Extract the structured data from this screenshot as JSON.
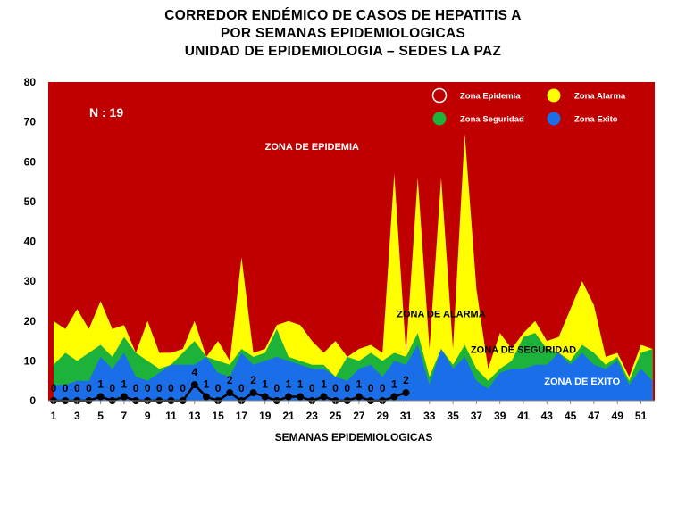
{
  "title_lines": [
    "CORREDOR ENDÉMICO DE CASOS DE HEPATITIS A",
    "POR SEMANAS EPIDEMIOLOGICAS",
    "UNIDAD DE EPIDEMIOLOGIA – SEDES LA PAZ"
  ],
  "n_label": "N : 19",
  "colors": {
    "epidemia": "#c00000",
    "alarma": "#ffff00",
    "seguridad": "#1db33a",
    "exito": "#1a6fe8",
    "cases": "#000000"
  },
  "chart_data": {
    "type": "area",
    "xlabel": "SEMANAS EPIDEMIOLOGICAS",
    "ylabel": "",
    "xlim": [
      1,
      52
    ],
    "ylim": [
      0,
      80
    ],
    "yticks": [
      0,
      10,
      20,
      30,
      40,
      50,
      60,
      70,
      80
    ],
    "xtick_labels": [
      "1",
      "3",
      "5",
      "7",
      "9",
      "11",
      "13",
      "15",
      "17",
      "19",
      "21",
      "23",
      "25",
      "27",
      "29",
      "31",
      "33",
      "35",
      "37",
      "39",
      "41",
      "43",
      "45",
      "47",
      "49",
      "51"
    ],
    "legend": [
      {
        "name": "Zona Epidemia",
        "color_key": "epidemia"
      },
      {
        "name": "Zona Alarma",
        "color_key": "alarma"
      },
      {
        "name": "Zona Seguridad",
        "color_key": "seguridad"
      },
      {
        "name": "Zona Exito",
        "color_key": "exito"
      }
    ],
    "legend_placement": "top-right",
    "zone_labels": [
      {
        "text": "ZONA DE EPIDEMIA",
        "week": 23,
        "value": 63
      },
      {
        "text": "ZONA DE ALARMA",
        "week": 34,
        "value": 21
      },
      {
        "text": "ZONA DE  SEGURIDAD",
        "week": 41,
        "value": 12
      },
      {
        "text": "ZONA DE  EXITO",
        "week": 46,
        "value": 4
      }
    ],
    "weeks": [
      1,
      2,
      3,
      4,
      5,
      6,
      7,
      8,
      9,
      10,
      11,
      12,
      13,
      14,
      15,
      16,
      17,
      18,
      19,
      20,
      21,
      22,
      23,
      24,
      25,
      26,
      27,
      28,
      29,
      30,
      31,
      32,
      33,
      34,
      35,
      36,
      37,
      38,
      39,
      40,
      41,
      42,
      43,
      44,
      45,
      46,
      47,
      48,
      49,
      50,
      51,
      52
    ],
    "series": [
      {
        "name": "Zona Alarma",
        "color_key": "alarma",
        "values": [
          20,
          18,
          23,
          18,
          25,
          18,
          19,
          12,
          20,
          12,
          12,
          13,
          20,
          11,
          15,
          10,
          36,
          12,
          13,
          19,
          20,
          19,
          15,
          12,
          15,
          11,
          13,
          14,
          12,
          57,
          12,
          56,
          13,
          56,
          13,
          67,
          28,
          8,
          17,
          13,
          17,
          20,
          15,
          16,
          23,
          30,
          24,
          11,
          12,
          6,
          14,
          13
        ]
      },
      {
        "name": "Zona Seguridad",
        "color_key": "seguridad",
        "values": [
          9,
          12,
          10,
          12,
          14,
          11,
          16,
          12,
          10,
          8,
          9,
          12,
          15,
          11,
          10,
          9,
          13,
          11,
          12,
          18,
          11,
          10,
          9,
          9,
          6,
          11,
          10,
          12,
          10,
          12,
          11,
          17,
          6,
          13,
          9,
          14,
          8,
          5,
          8,
          10,
          16,
          17,
          13,
          12,
          10,
          14,
          12,
          9,
          11,
          5,
          12,
          13
        ]
      },
      {
        "name": "Zona Exito",
        "color_key": "exito",
        "values": [
          4,
          4,
          5,
          5,
          11,
          8,
          12,
          6,
          5,
          7,
          9,
          9,
          9,
          11,
          7,
          6,
          12,
          9,
          10,
          11,
          10,
          9,
          8,
          8,
          6,
          5,
          8,
          9,
          6,
          10,
          9,
          14,
          4,
          13,
          8,
          11,
          5,
          3,
          7,
          8,
          8,
          9,
          9,
          12,
          9,
          12,
          9,
          8,
          10,
          4,
          8,
          5
        ]
      },
      {
        "name": "Casos",
        "color_key": "cases",
        "values": [
          0,
          0,
          0,
          0,
          1,
          0,
          1,
          0,
          0,
          0,
          0,
          0,
          4,
          1,
          0,
          2,
          0,
          2,
          1,
          0,
          1,
          1,
          0,
          1,
          0,
          0,
          1,
          0,
          0,
          1,
          2
        ],
        "labels": [
          "0",
          "0",
          "0",
          "0",
          "1",
          "0",
          "1",
          "0",
          "0",
          "0",
          "0",
          "0",
          "4",
          "1",
          "0",
          "2",
          "0",
          "2",
          "1",
          "0",
          "1",
          "1",
          "0",
          "1",
          "0",
          "0",
          "1",
          "0",
          "0",
          "1",
          "2"
        ]
      }
    ]
  }
}
